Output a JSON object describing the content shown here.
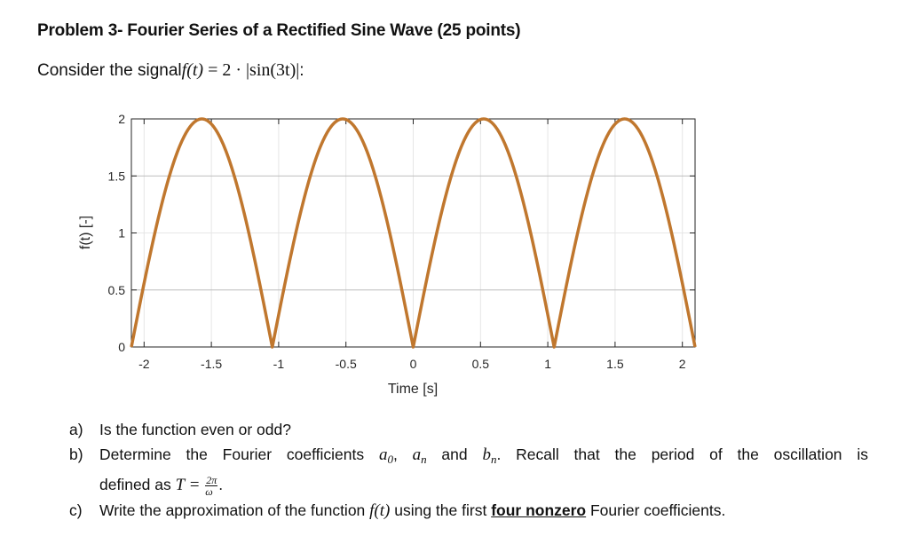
{
  "header": {
    "title": "Problem 3- Fourier Series of a Rectified Sine Wave (25 points)",
    "intro_text": "Consider the signal",
    "formula_lhs": "f(t)",
    "formula_rhs": " = 2 · |sin(3t)|",
    "formula_end": ":"
  },
  "chart_data": {
    "type": "line",
    "title": "",
    "xlabel": "Time [s]",
    "ylabel": "f(t) [-]",
    "xlim": [
      -2.0944,
      2.0944
    ],
    "ylim": [
      0,
      2
    ],
    "xticks": [
      -2,
      -1.5,
      -1,
      -0.5,
      0,
      0.5,
      1,
      1.5,
      2
    ],
    "xtick_labels": [
      "-2",
      "-1.5",
      "-1",
      "-0.5",
      "0",
      "0.5",
      "1",
      "1.5",
      "2"
    ],
    "yticks": [
      0,
      0.5,
      1,
      1.5,
      2
    ],
    "ytick_labels": [
      "0",
      "0.5",
      "1",
      "1.5",
      "2"
    ],
    "grid": true,
    "legend": null,
    "series": [
      {
        "name": "f(t) = 2|sin(3t)|",
        "color": "#C0772E",
        "function": "2*abs(sin(3*t))",
        "x": [
          -2.0944,
          -1.8326,
          -1.5708,
          -1.309,
          -1.0472,
          -0.7854,
          -0.5236,
          -0.2618,
          0,
          0.2618,
          0.5236,
          0.7854,
          1.0472,
          1.309,
          1.5708,
          1.8326,
          2.0944
        ],
        "y": [
          0,
          1.414,
          2,
          1.414,
          0,
          1.414,
          2,
          1.414,
          0,
          1.414,
          2,
          1.414,
          0,
          1.414,
          2,
          1.414,
          0
        ]
      }
    ]
  },
  "questions": [
    {
      "label": "a)",
      "text": "Is the function even or odd?"
    },
    {
      "label": "b)",
      "text_before": "Determine the Fourier coefficients ",
      "a0": "a",
      "a0_sub": "0",
      "sep": ", ",
      "an": "a",
      "an_sub": "n",
      "and": " and ",
      "bn": "b",
      "bn_sub": "n",
      "text_after": ". Recall that the period of the oscillation is",
      "continuation": "defined as ",
      "T": "T",
      "eq": " = ",
      "frac_num": "2π",
      "frac_den": "ω",
      "end": "."
    },
    {
      "label": "c)",
      "text_before": "Write the approximation of the function ",
      "func": "f(t)",
      "text_mid": " using the first ",
      "emphasis": "four nonzero",
      "text_after": " Fourier coefficients."
    }
  ]
}
